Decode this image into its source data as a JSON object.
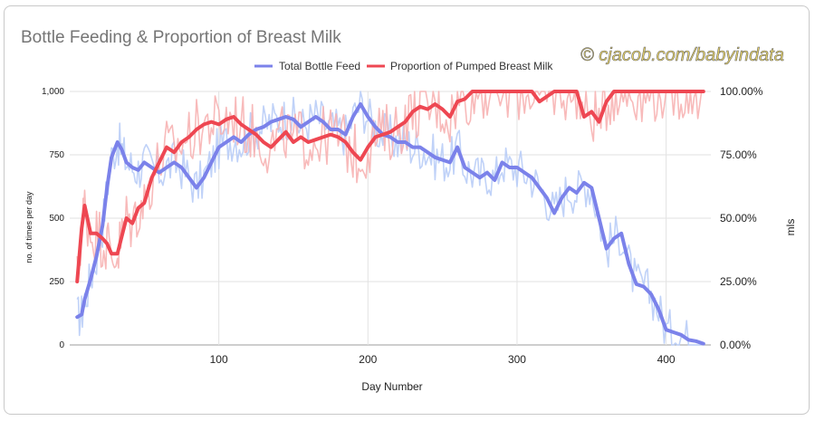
{
  "chart_data": {
    "type": "line",
    "title": "Bottle Feeding & Proportion of Breast Milk",
    "watermark": "© cjacob.com/babyindata",
    "xlabel": "Day Number",
    "ylabel_left": "no. of times per day",
    "ylabel_right": "mls",
    "xlim": [
      0,
      430
    ],
    "ylim_left": [
      0,
      1000
    ],
    "ylim_right": [
      0,
      1
    ],
    "x_ticks": [
      "100",
      "200",
      "300",
      "400"
    ],
    "y_ticks_left": [
      "0",
      "250",
      "500",
      "750",
      "1,000"
    ],
    "y_ticks_right": [
      "0.00%",
      "25.00%",
      "50.00%",
      "75.00%",
      "100.00%"
    ],
    "grid": true,
    "legend_position": "top-center",
    "colors": {
      "bottle_trend": "#7b82ea",
      "bottle_raw": "#b9cdf7",
      "proportion_trend": "#ee4752",
      "proportion_raw": "#f7b3b3"
    },
    "series": [
      {
        "name": "Total Bottle Feed",
        "axis": "left",
        "x": [
          5,
          8,
          10,
          14,
          18,
          22,
          25,
          28,
          32,
          35,
          38,
          42,
          46,
          50,
          55,
          60,
          65,
          70,
          75,
          80,
          85,
          90,
          95,
          100,
          105,
          110,
          115,
          120,
          125,
          130,
          135,
          140,
          145,
          150,
          155,
          160,
          165,
          170,
          175,
          180,
          185,
          190,
          195,
          200,
          205,
          210,
          215,
          220,
          225,
          230,
          235,
          240,
          245,
          250,
          255,
          260,
          265,
          270,
          275,
          280,
          285,
          290,
          295,
          300,
          305,
          310,
          315,
          320,
          325,
          330,
          335,
          340,
          345,
          350,
          355,
          360,
          365,
          370,
          375,
          380,
          385,
          390,
          395,
          400,
          405,
          410,
          415,
          420,
          425
        ],
        "values": [
          110,
          120,
          180,
          260,
          350,
          470,
          620,
          740,
          800,
          770,
          720,
          700,
          690,
          720,
          700,
          680,
          700,
          720,
          700,
          660,
          620,
          660,
          720,
          780,
          800,
          820,
          800,
          830,
          850,
          860,
          880,
          890,
          900,
          890,
          860,
          880,
          900,
          880,
          850,
          850,
          830,
          900,
          950,
          900,
          860,
          830,
          820,
          800,
          800,
          780,
          780,
          760,
          740,
          730,
          720,
          780,
          700,
          680,
          660,
          680,
          650,
          720,
          700,
          700,
          680,
          660,
          620,
          580,
          520,
          580,
          620,
          600,
          640,
          620,
          500,
          380,
          420,
          440,
          320,
          240,
          230,
          200,
          140,
          60,
          50,
          40,
          20,
          15,
          5
        ]
      },
      {
        "name": "Proportion of Pumped Breast Milk",
        "axis": "right",
        "x": [
          5,
          8,
          10,
          14,
          18,
          22,
          25,
          28,
          32,
          35,
          38,
          42,
          46,
          50,
          55,
          60,
          65,
          70,
          75,
          80,
          85,
          90,
          95,
          100,
          105,
          110,
          115,
          120,
          125,
          130,
          135,
          140,
          145,
          150,
          155,
          160,
          165,
          170,
          175,
          180,
          185,
          190,
          195,
          200,
          205,
          210,
          215,
          220,
          225,
          230,
          235,
          240,
          245,
          250,
          255,
          260,
          265,
          270,
          275,
          280,
          285,
          290,
          295,
          300,
          305,
          310,
          315,
          320,
          325,
          330,
          335,
          340,
          345,
          350,
          355,
          360,
          365,
          370,
          375,
          380,
          385,
          390,
          395,
          400,
          405,
          410,
          415,
          420,
          425
        ],
        "values": [
          0.25,
          0.46,
          0.55,
          0.44,
          0.44,
          0.42,
          0.4,
          0.36,
          0.36,
          0.43,
          0.5,
          0.48,
          0.54,
          0.56,
          0.66,
          0.72,
          0.78,
          0.76,
          0.8,
          0.82,
          0.85,
          0.87,
          0.88,
          0.87,
          0.89,
          0.9,
          0.87,
          0.85,
          0.83,
          0.8,
          0.78,
          0.81,
          0.84,
          0.8,
          0.82,
          0.8,
          0.81,
          0.82,
          0.83,
          0.82,
          0.8,
          0.76,
          0.73,
          0.78,
          0.82,
          0.83,
          0.84,
          0.86,
          0.88,
          0.92,
          0.94,
          0.93,
          0.95,
          0.93,
          0.9,
          0.96,
          0.97,
          1.0,
          1.0,
          1.0,
          1.0,
          1.0,
          1.0,
          1.0,
          1.0,
          1.0,
          0.96,
          0.98,
          1.0,
          1.0,
          1.0,
          1.0,
          0.9,
          0.92,
          0.88,
          0.96,
          1.0,
          1.0,
          1.0,
          1.0,
          1.0,
          1.0,
          1.0,
          1.0,
          1.0,
          1.0,
          1.0,
          1.0,
          1.0
        ]
      }
    ]
  }
}
